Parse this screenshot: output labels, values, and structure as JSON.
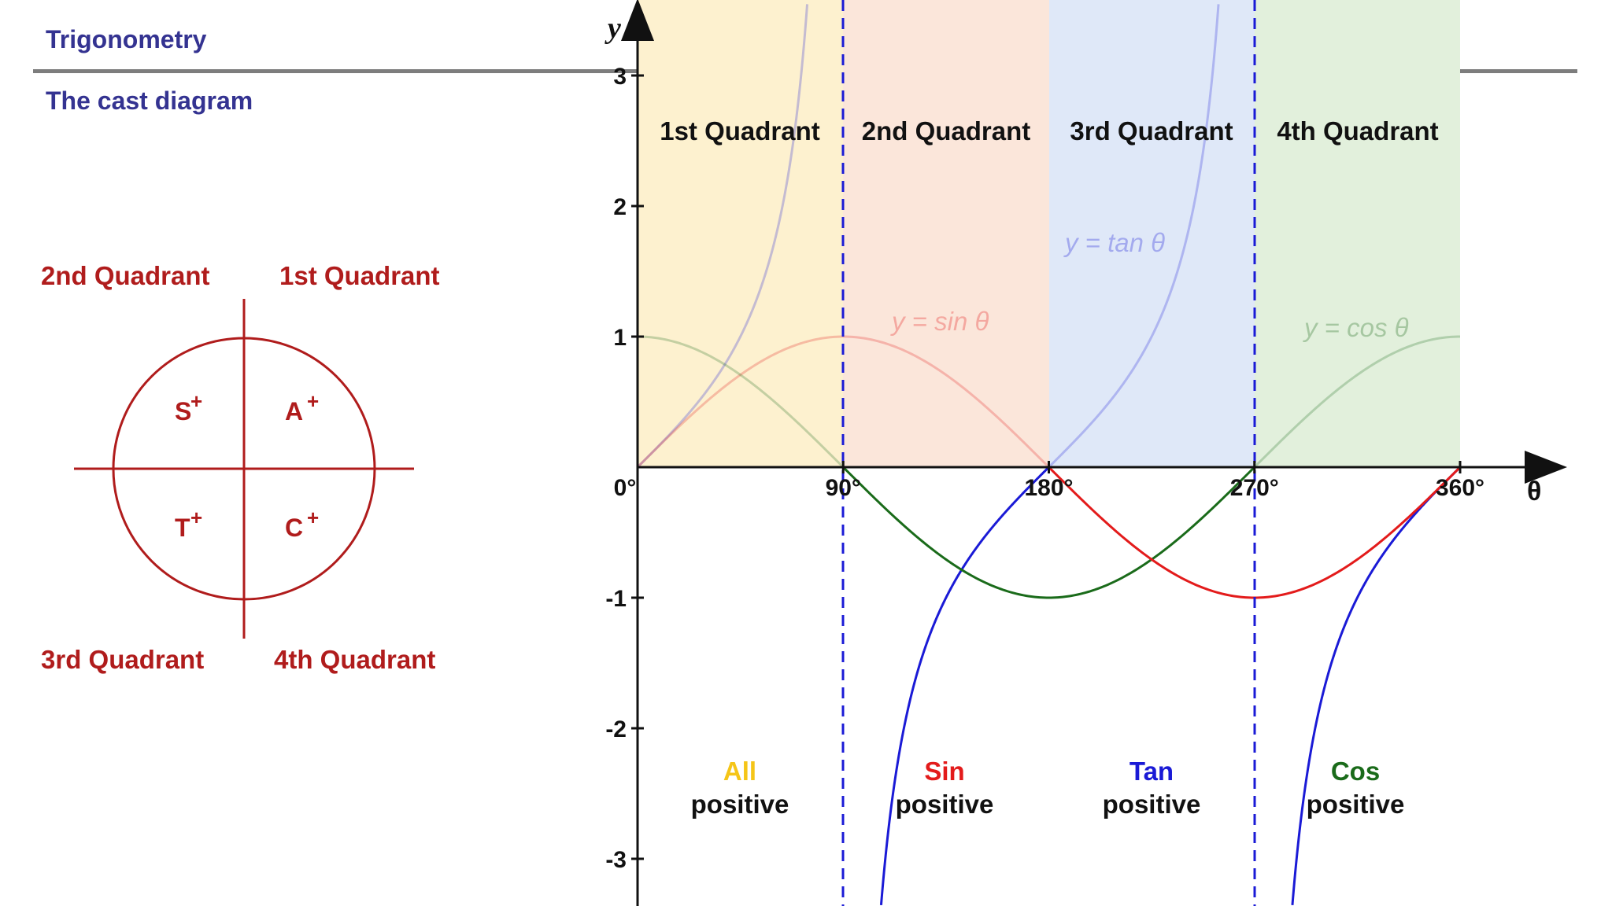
{
  "header": {
    "title": "Trigonometry",
    "subtitle": "The cast diagram"
  },
  "cast_diagram": {
    "quadrant_labels": {
      "q2": "2nd Quadrant",
      "q1": "1st Quadrant",
      "q3": "3rd Quadrant",
      "q4": "4th Quadrant"
    },
    "letters": {
      "s": "S",
      "a": "A",
      "t": "T",
      "c": "C",
      "plus": "+"
    },
    "color": "#b01c1c"
  },
  "graph": {
    "axis_labels": {
      "y": "y",
      "x": "θ"
    },
    "x_ticks": [
      {
        "value": 0,
        "label": "0°"
      },
      {
        "value": 90,
        "label": "90°"
      },
      {
        "value": 180,
        "label": "180°"
      },
      {
        "value": 270,
        "label": "270°"
      },
      {
        "value": 360,
        "label": "360°"
      }
    ],
    "y_ticks": [
      {
        "value": 3,
        "label": "3"
      },
      {
        "value": 2,
        "label": "2"
      },
      {
        "value": 1,
        "label": "1"
      },
      {
        "value": -1,
        "label": "-1"
      },
      {
        "value": -2,
        "label": "-2"
      },
      {
        "value": -3,
        "label": "-3"
      }
    ],
    "quadrants": [
      {
        "label": "1st Quadrant",
        "fill": "#fdf1cf",
        "key_word": "All",
        "key_color": "#f5c518",
        "positive_text": "positive"
      },
      {
        "label": "2nd Quadrant",
        "fill": "#fbe6da",
        "key_word": "Sin",
        "key_color": "#e31b1b",
        "positive_text": "positive"
      },
      {
        "label": "3rd Quadrant",
        "fill": "#dfe8f8",
        "key_word": "Tan",
        "key_color": "#1a1ad6",
        "positive_text": "positive"
      },
      {
        "label": "4th Quadrant",
        "fill": "#e2f0dc",
        "key_word": "Cos",
        "key_color": "#1a6b1a",
        "positive_text": "positive"
      }
    ],
    "curve_labels": {
      "sin": "y = sin θ",
      "cos": "y = cos θ",
      "tan": "y = tan θ"
    },
    "colors": {
      "sin": "#e31b1b",
      "cos": "#1a6b1a",
      "tan": "#1a1ad6",
      "asymptote": "#1a1ad6"
    }
  }
}
